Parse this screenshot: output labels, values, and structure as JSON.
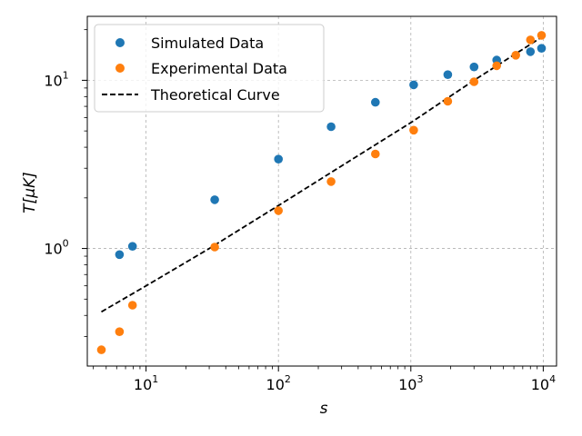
{
  "chart_data": {
    "type": "scatter",
    "title": "",
    "xlabel": "s",
    "ylabel": "T[μK]",
    "xscale": "log",
    "yscale": "log",
    "xlim": [
      3.6,
      12600
    ],
    "ylim": [
      0.2,
      24
    ],
    "grid": true,
    "legend_position": "top-left",
    "x_ticks": [
      {
        "value": 10,
        "base": "10",
        "exp": "1"
      },
      {
        "value": 100,
        "base": "10",
        "exp": "2"
      },
      {
        "value": 1000,
        "base": "10",
        "exp": "3"
      },
      {
        "value": 10000,
        "base": "10",
        "exp": "4"
      }
    ],
    "y_ticks": [
      {
        "value": 1,
        "label": "10⁰"
      },
      {
        "value": 10,
        "label": "10¹"
      }
    ],
    "y_tick_labels": {
      "base": "10",
      "exps": [
        "0",
        "1"
      ]
    },
    "series": [
      {
        "name": "Simulated Data",
        "kind": "points",
        "color": "#1f77b4",
        "x": [
          6.3,
          7.9,
          33,
          100,
          250,
          540,
          1050,
          1900,
          3000,
          4450,
          8000,
          9700
        ],
        "y": [
          0.92,
          1.03,
          1.95,
          3.4,
          5.3,
          7.4,
          9.4,
          10.8,
          12.0,
          13.2,
          14.8,
          15.5
        ]
      },
      {
        "name": "Experimental Data",
        "kind": "points",
        "color": "#ff7f0e",
        "x": [
          4.6,
          6.3,
          7.9,
          33,
          100,
          250,
          540,
          1050,
          1900,
          3000,
          4450,
          6200,
          8000,
          9700
        ],
        "y": [
          0.25,
          0.32,
          0.46,
          1.02,
          1.68,
          2.5,
          3.65,
          5.05,
          7.5,
          9.8,
          12.2,
          14.1,
          17.4,
          18.5
        ]
      },
      {
        "name": "Theoretical Curve",
        "kind": "line",
        "style": "dashed",
        "color": "#000000",
        "x": [
          4.6,
          10,
          30,
          100,
          300,
          1000,
          3000,
          10000
        ],
        "y": [
          0.42,
          0.6,
          1.0,
          1.8,
          3.1,
          5.6,
          10.0,
          18.3
        ]
      }
    ]
  }
}
